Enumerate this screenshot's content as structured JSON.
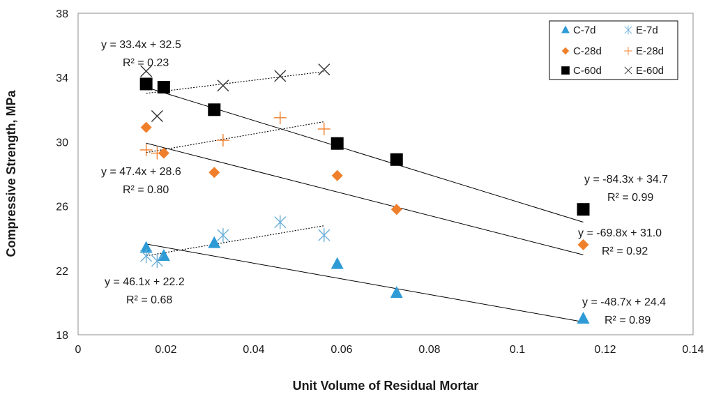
{
  "chart_data": {
    "type": "scatter",
    "title": "",
    "xlabel": "Unit Volume of Residual Mortar",
    "ylabel": "Compressive Strength, MPa",
    "xlim": [
      0,
      0.14
    ],
    "ylim": [
      18,
      38
    ],
    "xticks": [
      0,
      0.02,
      0.04,
      0.06,
      0.08,
      0.1,
      0.12,
      0.14
    ],
    "xtick_labels": [
      "0",
      "0.02",
      "0.04",
      "0.06",
      "0.08",
      "0.1",
      "0.12",
      "0.14"
    ],
    "yticks": [
      18,
      22,
      26,
      30,
      34,
      38
    ],
    "ytick_labels": [
      "18",
      "22",
      "26",
      "30",
      "34",
      "38"
    ],
    "grid": false,
    "legend_position": "top-right",
    "series": [
      {
        "name": "C-7d",
        "marker": "triangle",
        "color": "#2e9bd6",
        "points": [
          [
            0.0155,
            23.4
          ],
          [
            0.0195,
            22.9
          ],
          [
            0.031,
            23.7
          ],
          [
            0.059,
            22.4
          ],
          [
            0.0725,
            20.6
          ],
          [
            0.115,
            19.0
          ]
        ],
        "trendline": {
          "slope": -48.7,
          "intercept": 24.4,
          "x_range": [
            0.0155,
            0.115
          ],
          "style": "solid"
        }
      },
      {
        "name": "E-7d",
        "marker": "asterisk",
        "color": "#6aafd8",
        "points": [
          [
            0.0155,
            22.9
          ],
          [
            0.018,
            22.6
          ],
          [
            0.033,
            24.2
          ],
          [
            0.046,
            25.0
          ],
          [
            0.056,
            24.2
          ]
        ],
        "trendline": {
          "slope": 46.1,
          "intercept": 22.2,
          "x_range": [
            0.0155,
            0.056
          ],
          "style": "dotted"
        }
      },
      {
        "name": "C-28d",
        "marker": "diamond",
        "color": "#f07f2b",
        "points": [
          [
            0.0155,
            30.9
          ],
          [
            0.0195,
            29.3
          ],
          [
            0.031,
            28.1
          ],
          [
            0.059,
            27.9
          ],
          [
            0.0725,
            25.8
          ],
          [
            0.115,
            23.6
          ]
        ],
        "trendline": {
          "slope": -69.8,
          "intercept": 31.0,
          "x_range": [
            0.0155,
            0.115
          ],
          "style": "solid"
        }
      },
      {
        "name": "E-28d",
        "marker": "plus",
        "color": "#f07f2b",
        "points": [
          [
            0.0155,
            29.5
          ],
          [
            0.018,
            29.3
          ],
          [
            0.033,
            30.1
          ],
          [
            0.046,
            31.5
          ],
          [
            0.056,
            30.8
          ]
        ],
        "trendline": {
          "slope": 47.4,
          "intercept": 28.6,
          "x_range": [
            0.0155,
            0.056
          ],
          "style": "dotted"
        }
      },
      {
        "name": "C-60d",
        "marker": "square",
        "color": "#000000",
        "points": [
          [
            0.0155,
            33.6
          ],
          [
            0.0195,
            33.4
          ],
          [
            0.031,
            32.0
          ],
          [
            0.059,
            29.9
          ],
          [
            0.0725,
            28.9
          ],
          [
            0.115,
            25.8
          ]
        ],
        "trendline": {
          "slope": -84.3,
          "intercept": 34.7,
          "x_range": [
            0.0155,
            0.115
          ],
          "style": "solid"
        }
      },
      {
        "name": "E-60d",
        "marker": "x",
        "color": "#333333",
        "points": [
          [
            0.0155,
            34.4
          ],
          [
            0.018,
            31.6
          ],
          [
            0.033,
            33.5
          ],
          [
            0.046,
            34.1
          ],
          [
            0.056,
            34.5
          ]
        ],
        "trendline": {
          "slope": 33.4,
          "intercept": 32.5,
          "x_range": [
            0.0155,
            0.056
          ],
          "style": "dotted"
        }
      }
    ],
    "annotations": [
      {
        "id": "e60",
        "equation": "y = 33.4x + 32.5",
        "r2": "R² = 0.23"
      },
      {
        "id": "e28",
        "equation": "y = 47.4x + 28.6",
        "r2": "R² = 0.80"
      },
      {
        "id": "e7",
        "equation": "y = 46.1x + 22.2",
        "r2": "R² = 0.68"
      },
      {
        "id": "c60",
        "equation": "y = -84.3x + 34.7",
        "r2": "R² = 0.99"
      },
      {
        "id": "c28",
        "equation": "y = -69.8x + 31.0",
        "r2": "R² = 0.92"
      },
      {
        "id": "c7",
        "equation": "y = -48.7x + 24.4",
        "r2": "R² = 0.89"
      }
    ]
  }
}
